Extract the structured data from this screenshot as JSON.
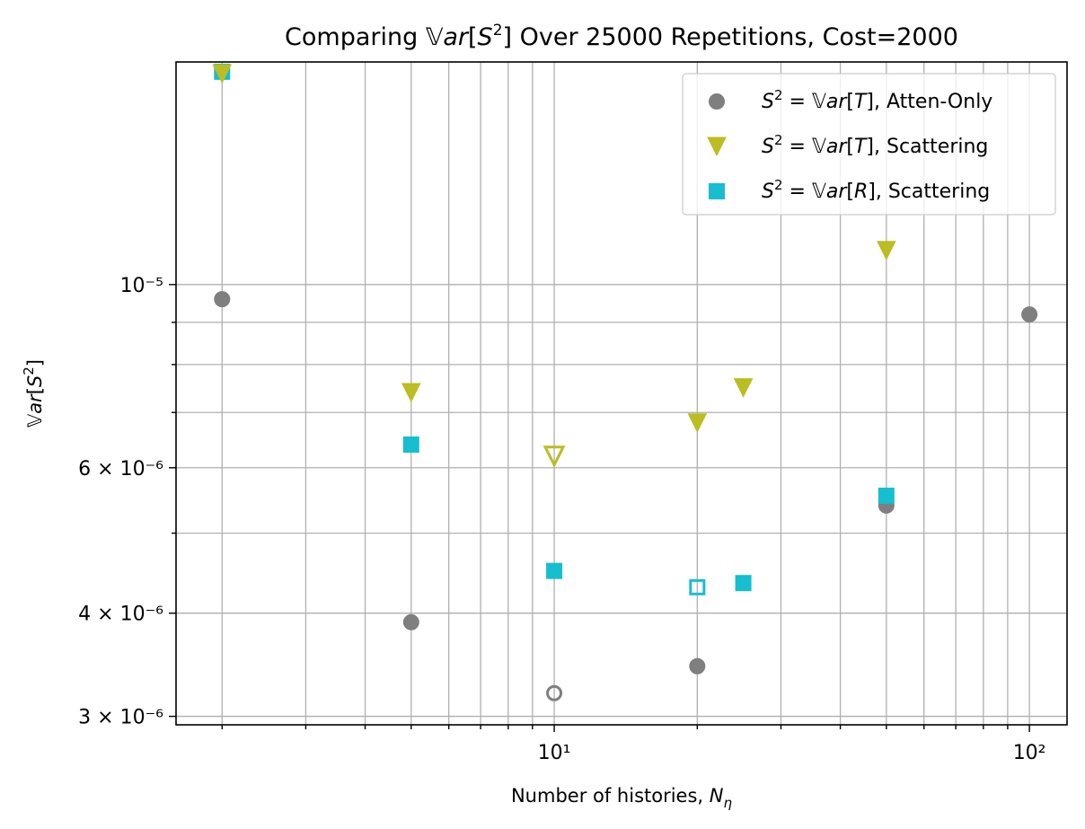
{
  "chart_data": {
    "type": "scatter",
    "title": "Comparing 𝕍ar[S²] Over 25000 Repetitions, Cost=2000",
    "xlabel": "Number of histories, Nη",
    "ylabel": "𝕍ar[S²]",
    "xscale": "log",
    "yscale": "log",
    "xlim": [
      1.6,
      120
    ],
    "ylim": [
      2.93e-06,
      1.86e-05
    ],
    "grid": true,
    "grid_which": "both",
    "legend_position": "top-right",
    "x_major_ticks": [
      {
        "value": 10,
        "label": "10¹"
      },
      {
        "value": 100,
        "label": "10²"
      }
    ],
    "x_minor_ticks": [
      2,
      3,
      4,
      5,
      6,
      7,
      8,
      9,
      20,
      30,
      40,
      50,
      60,
      70,
      80,
      90
    ],
    "y_ticks": [
      {
        "value": 3e-06,
        "label": "3 × 10⁻⁶"
      },
      {
        "value": 4e-06,
        "label": "4 × 10⁻⁶"
      },
      {
        "value": 6e-06,
        "label": "6 × 10⁻⁶"
      },
      {
        "value": 1e-05,
        "label": "10⁻⁵"
      }
    ],
    "y_minor_ticks": [
      5e-06,
      7e-06,
      8e-06,
      9e-06
    ],
    "series": [
      {
        "name": "S² = 𝕍ar[T], Atten-Only",
        "marker": "circle",
        "color": "#7f7f7f",
        "points": [
          {
            "x": 2,
            "y": 9.6e-06
          },
          {
            "x": 5,
            "y": 3.9e-06
          },
          {
            "x": 10,
            "y": 3.2e-06,
            "hollow": true
          },
          {
            "x": 20,
            "y": 3.45e-06
          },
          {
            "x": 50,
            "y": 5.4e-06
          },
          {
            "x": 100,
            "y": 9.2e-06
          }
        ]
      },
      {
        "name": "S² = 𝕍ar[T], Scattering",
        "marker": "triangle-down",
        "color": "#bcbd22",
        "points": [
          {
            "x": 2,
            "y": 1.8e-05
          },
          {
            "x": 5,
            "y": 7.4e-06
          },
          {
            "x": 10,
            "y": 6.2e-06,
            "hollow": true
          },
          {
            "x": 20,
            "y": 6.8e-06
          },
          {
            "x": 25,
            "y": 7.5e-06
          },
          {
            "x": 50,
            "y": 1.1e-05
          }
        ]
      },
      {
        "name": "S² = 𝕍ar[R], Scattering",
        "marker": "square",
        "color": "#17becf",
        "points": [
          {
            "x": 2,
            "y": 1.81e-05
          },
          {
            "x": 5,
            "y": 6.4e-06
          },
          {
            "x": 10,
            "y": 4.5e-06
          },
          {
            "x": 20,
            "y": 4.3e-06,
            "hollow": true
          },
          {
            "x": 25,
            "y": 4.35e-06
          },
          {
            "x": 50,
            "y": 5.55e-06
          }
        ]
      }
    ]
  }
}
